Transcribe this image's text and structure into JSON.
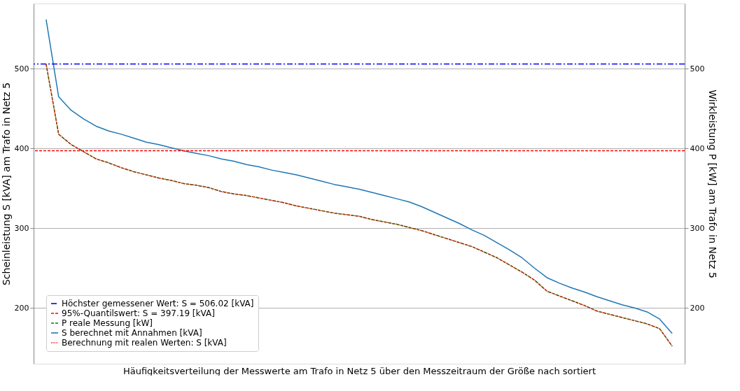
{
  "chart_data": {
    "type": "line",
    "xlabel": "Häufigkeitsverteilung der Messwerte am Trafo in Netz 5 über den Messzeitraum der Größe nach sortiert",
    "ylabel": "Scheinleistung S [kVA] am Trafo in Netz 5",
    "y2label": "Wirkleistung P [kW] am Trafo in Netz 5",
    "categories": [
      null,
      null,
      null,
      null,
      null,
      null,
      null,
      null,
      null,
      null,
      null,
      null,
      null,
      null,
      null,
      null,
      null,
      null,
      null,
      null,
      null,
      null,
      null,
      null,
      null,
      null,
      null,
      null,
      null,
      null,
      null,
      null,
      null,
      null,
      null,
      null,
      null,
      null,
      null,
      null,
      null,
      null,
      null,
      null,
      null,
      null,
      null,
      null,
      null,
      null,
      null
    ],
    "ylim": [
      130,
      582
    ],
    "yticks": [
      200,
      300,
      400,
      500
    ],
    "y2lim": [
      130,
      582
    ],
    "y2ticks": [
      200,
      300,
      400,
      500
    ],
    "tick_labels": "y",
    "grid": "y",
    "legend": "bottom left",
    "ref_lines": [
      {
        "axis": "y",
        "value": 506.02,
        "label": "Höchster gemessener Wert: S = 506.02 [kVA]",
        "color": "#0000ff",
        "line_style": "dashdot"
      },
      {
        "axis": "y",
        "value": 397.19,
        "label": "95%-Quantilswert: S  = 397.19 [kVA]",
        "color": "#ff0000",
        "line_style": "dashed"
      }
    ],
    "series": [
      {
        "name": "P reale Messung [kW]",
        "color": "#008000",
        "line_style": "dashed",
        "axis": "y2",
        "values": [
          506,
          418,
          405,
          396,
          387,
          382,
          376,
          371,
          367,
          363,
          360,
          356,
          354,
          351,
          346,
          343,
          341,
          338,
          335,
          332,
          328,
          325,
          322,
          319,
          317,
          315,
          311,
          308,
          305,
          301,
          297,
          292,
          287,
          282,
          277,
          270,
          263,
          254,
          245,
          235,
          221,
          215,
          209,
          203,
          196,
          192,
          188,
          184,
          180,
          174,
          152
        ]
      },
      {
        "name": "S berechnet mit Annahmen [kVA]",
        "color": "#1f77b4",
        "line_style": "solid",
        "axis": "y",
        "values": [
          562,
          465,
          448,
          437,
          428,
          422,
          418,
          413,
          408,
          405,
          401,
          397,
          394,
          391,
          387,
          384,
          380,
          377,
          373,
          370,
          367,
          363,
          359,
          355,
          352,
          349,
          345,
          341,
          337,
          333,
          327,
          320,
          313,
          306,
          298,
          291,
          282,
          273,
          263,
          250,
          238,
          231,
          225,
          220,
          214,
          209,
          204,
          200,
          195,
          186,
          168
        ]
      },
      {
        "name": "Berechnung mit realen Werten: S [kVA]",
        "color": "#ff0000",
        "line_style": "dotted",
        "axis": "y",
        "values": [
          506,
          418,
          405,
          396,
          387,
          382,
          376,
          371,
          367,
          363,
          360,
          356,
          354,
          351,
          346,
          343,
          341,
          338,
          335,
          332,
          328,
          325,
          322,
          319,
          317,
          315,
          311,
          308,
          305,
          301,
          297,
          292,
          287,
          282,
          277,
          270,
          263,
          254,
          245,
          235,
          221,
          215,
          209,
          203,
          196,
          192,
          188,
          184,
          180,
          174,
          152
        ]
      }
    ]
  }
}
